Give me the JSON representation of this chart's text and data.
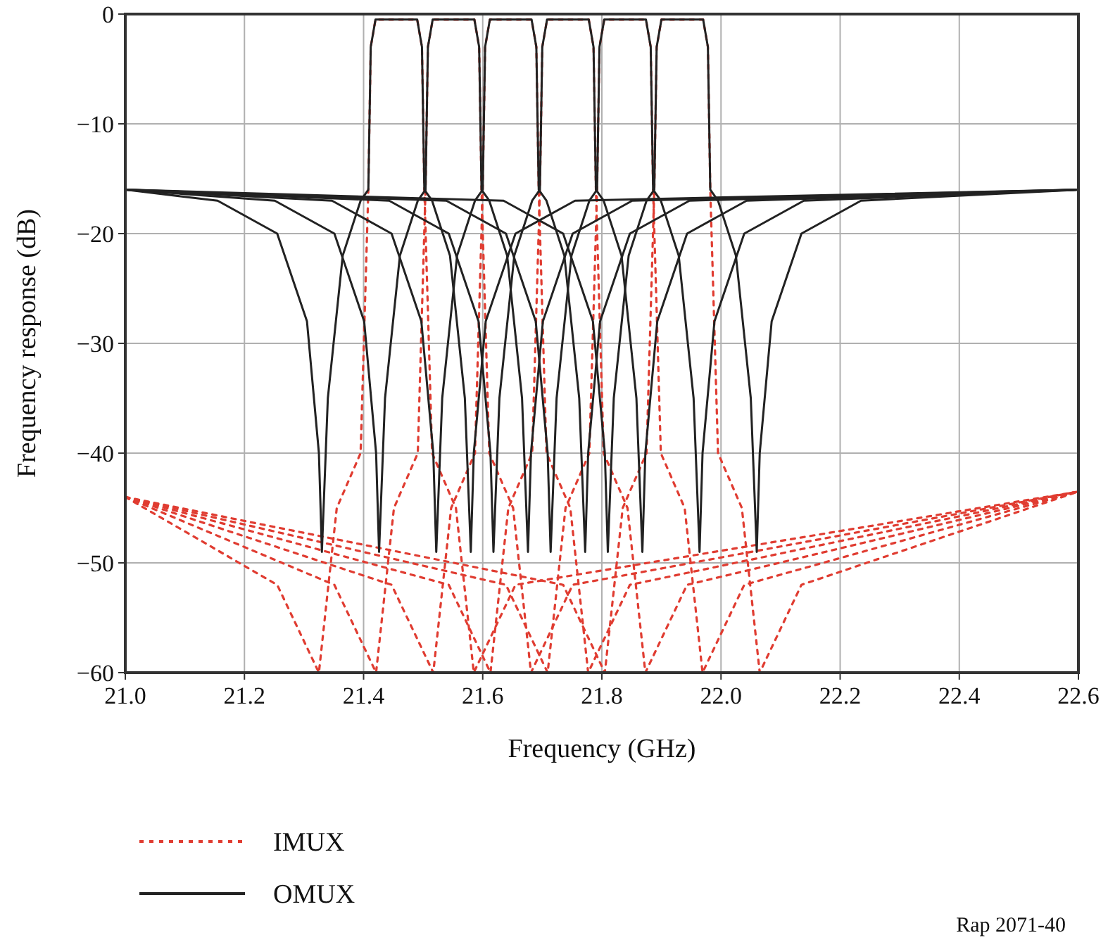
{
  "chart_data": {
    "type": "line",
    "xlabel": "Frequency (GHz)",
    "ylabel": "Frequency response (dB)",
    "xlim": [
      21.0,
      22.6
    ],
    "xticks": [
      {
        "value": 21.0,
        "label": "21.0"
      },
      {
        "value": 21.2,
        "label": "21.2"
      },
      {
        "value": 21.4,
        "label": "21.4"
      },
      {
        "value": 21.6,
        "label": "21.6"
      },
      {
        "value": 21.8,
        "label": "21.8"
      },
      {
        "value": 22.0,
        "label": "22.0"
      },
      {
        "value": 22.2,
        "label": "22.2"
      },
      {
        "value": 22.4,
        "label": "22.4"
      },
      {
        "value": 22.6,
        "label": "22.6"
      }
    ],
    "ylim": [
      -60,
      0
    ],
    "yticks": [
      -60,
      -50,
      -40,
      -30,
      -20,
      -10,
      0
    ],
    "grid": true,
    "legend": "bottom left",
    "marker": "none",
    "annotations": [
      "Rap 2071-40"
    ],
    "series": [
      {
        "name": "IMUX",
        "color": "#e03c31",
        "line_style": "dotted",
        "x": [
          21.0,
          21.255,
          21.325,
          21.355,
          21.395,
          21.408,
          21.412,
          21.42,
          21.49,
          21.498,
          21.502,
          21.515,
          21.555,
          21.585,
          21.655,
          22.6
        ],
        "values": [
          -44,
          -52,
          -60,
          -45,
          -40,
          -16,
          -3,
          -0.5,
          -0.5,
          -3,
          -16,
          -40,
          -45,
          -60,
          -52,
          -43.5
        ]
      },
      {
        "color": "#e03c31",
        "line_style": "dotted",
        "x": [
          21.0,
          21.351,
          21.421,
          21.451,
          21.491,
          21.504,
          21.508,
          21.516,
          21.586,
          21.594,
          21.598,
          21.611,
          21.651,
          21.681,
          21.751,
          22.6
        ],
        "values": [
          -44,
          -52,
          -60,
          -45,
          -40,
          -16,
          -3,
          -0.5,
          -0.5,
          -3,
          -16,
          -40,
          -45,
          -60,
          -52,
          -43.5
        ]
      },
      {
        "color": "#e03c31",
        "line_style": "dotted",
        "x": [
          21.0,
          21.447,
          21.517,
          21.547,
          21.587,
          21.6,
          21.604,
          21.612,
          21.682,
          21.69,
          21.694,
          21.707,
          21.747,
          21.777,
          21.847,
          22.6
        ],
        "values": [
          -44,
          -52,
          -60,
          -45,
          -40,
          -16,
          -3,
          -0.5,
          -0.5,
          -3,
          -16,
          -40,
          -45,
          -60,
          -52,
          -43.5
        ]
      },
      {
        "color": "#e03c31",
        "line_style": "dotted",
        "x": [
          21.0,
          21.543,
          21.613,
          21.643,
          21.683,
          21.696,
          21.7,
          21.708,
          21.778,
          21.786,
          21.79,
          21.803,
          21.843,
          21.873,
          21.943,
          22.6
        ],
        "values": [
          -44,
          -52,
          -60,
          -45,
          -40,
          -16,
          -3,
          -0.5,
          -0.5,
          -3,
          -16,
          -40,
          -45,
          -60,
          -52,
          -43.5
        ]
      },
      {
        "color": "#e03c31",
        "line_style": "dotted",
        "x": [
          21.0,
          21.639,
          21.709,
          21.739,
          21.779,
          21.792,
          21.796,
          21.804,
          21.874,
          21.882,
          21.886,
          21.899,
          21.939,
          21.969,
          22.039,
          22.6
        ],
        "values": [
          -44,
          -52,
          -60,
          -45,
          -40,
          -16,
          -3,
          -0.5,
          -0.5,
          -3,
          -16,
          -40,
          -45,
          -60,
          -52,
          -43.5
        ]
      },
      {
        "color": "#e03c31",
        "line_style": "dotted",
        "x": [
          21.0,
          21.735,
          21.805,
          21.835,
          21.875,
          21.888,
          21.892,
          21.9,
          21.97,
          21.978,
          21.982,
          21.995,
          22.035,
          22.065,
          22.135,
          22.6
        ],
        "values": [
          -44,
          -52,
          -60,
          -45,
          -40,
          -16,
          -3,
          -0.5,
          -0.5,
          -3,
          -16,
          -40,
          -45,
          -60,
          -52,
          -43.5
        ]
      },
      {
        "name": "OMUX",
        "color": "#222222",
        "line_style": "solid",
        "x": [
          21.0,
          21.155,
          21.255,
          21.305,
          21.325,
          21.33,
          21.34,
          21.365,
          21.395,
          21.408,
          21.412,
          21.42,
          21.49,
          21.498,
          21.502,
          21.515,
          21.545,
          21.57,
          21.58,
          21.585,
          21.605,
          21.655,
          21.755,
          22.6
        ],
        "values": [
          -16,
          -17,
          -20,
          -28,
          -40,
          -49,
          -35,
          -22,
          -17,
          -16,
          -3,
          -0.5,
          -0.5,
          -3,
          -16,
          -17,
          -22,
          -35,
          -49,
          -40,
          -28,
          -20,
          -17,
          -16
        ]
      },
      {
        "color": "#222222",
        "line_style": "solid",
        "x": [
          21.0,
          21.251,
          21.351,
          21.401,
          21.421,
          21.426,
          21.436,
          21.461,
          21.491,
          21.504,
          21.508,
          21.516,
          21.586,
          21.594,
          21.598,
          21.611,
          21.641,
          21.666,
          21.676,
          21.681,
          21.701,
          21.751,
          21.851,
          22.6
        ],
        "values": [
          -16,
          -17,
          -20,
          -28,
          -40,
          -49,
          -35,
          -22,
          -17,
          -16,
          -3,
          -0.5,
          -0.5,
          -3,
          -16,
          -17,
          -22,
          -35,
          -49,
          -40,
          -28,
          -20,
          -17,
          -16
        ]
      },
      {
        "color": "#222222",
        "line_style": "solid",
        "x": [
          21.0,
          21.347,
          21.447,
          21.497,
          21.517,
          21.522,
          21.532,
          21.557,
          21.587,
          21.6,
          21.604,
          21.612,
          21.682,
          21.69,
          21.694,
          21.707,
          21.737,
          21.762,
          21.772,
          21.777,
          21.797,
          21.847,
          21.947,
          22.6
        ],
        "values": [
          -16,
          -17,
          -20,
          -28,
          -40,
          -49,
          -35,
          -22,
          -17,
          -16,
          -3,
          -0.5,
          -0.5,
          -3,
          -16,
          -17,
          -22,
          -35,
          -49,
          -40,
          -28,
          -20,
          -17,
          -16
        ]
      },
      {
        "color": "#222222",
        "line_style": "solid",
        "x": [
          21.0,
          21.443,
          21.543,
          21.593,
          21.613,
          21.618,
          21.628,
          21.653,
          21.683,
          21.696,
          21.7,
          21.708,
          21.778,
          21.786,
          21.79,
          21.803,
          21.833,
          21.858,
          21.868,
          21.873,
          21.893,
          21.943,
          22.043,
          22.6
        ],
        "values": [
          -16,
          -17,
          -20,
          -28,
          -40,
          -49,
          -35,
          -22,
          -17,
          -16,
          -3,
          -0.5,
          -0.5,
          -3,
          -16,
          -17,
          -22,
          -35,
          -49,
          -40,
          -28,
          -20,
          -17,
          -16
        ]
      },
      {
        "color": "#222222",
        "line_style": "solid",
        "x": [
          21.0,
          21.539,
          21.639,
          21.689,
          21.709,
          21.714,
          21.724,
          21.749,
          21.779,
          21.792,
          21.796,
          21.804,
          21.874,
          21.882,
          21.886,
          21.899,
          21.929,
          21.954,
          21.964,
          21.969,
          21.989,
          22.039,
          22.139,
          22.6
        ],
        "values": [
          -16,
          -17,
          -20,
          -28,
          -40,
          -49,
          -35,
          -22,
          -17,
          -16,
          -3,
          -0.5,
          -0.5,
          -3,
          -16,
          -17,
          -22,
          -35,
          -49,
          -40,
          -28,
          -20,
          -17,
          -16
        ]
      },
      {
        "color": "#222222",
        "line_style": "solid",
        "x": [
          21.0,
          21.635,
          21.735,
          21.785,
          21.805,
          21.81,
          21.82,
          21.845,
          21.875,
          21.888,
          21.892,
          21.9,
          21.97,
          21.978,
          21.982,
          21.995,
          22.025,
          22.05,
          22.06,
          22.065,
          22.085,
          22.135,
          22.235,
          22.6
        ],
        "values": [
          -16,
          -17,
          -20,
          -28,
          -40,
          -49,
          -35,
          -22,
          -17,
          -16,
          -3,
          -0.5,
          -0.5,
          -3,
          -16,
          -17,
          -22,
          -35,
          -49,
          -40,
          -28,
          -20,
          -17,
          -16
        ]
      }
    ]
  }
}
